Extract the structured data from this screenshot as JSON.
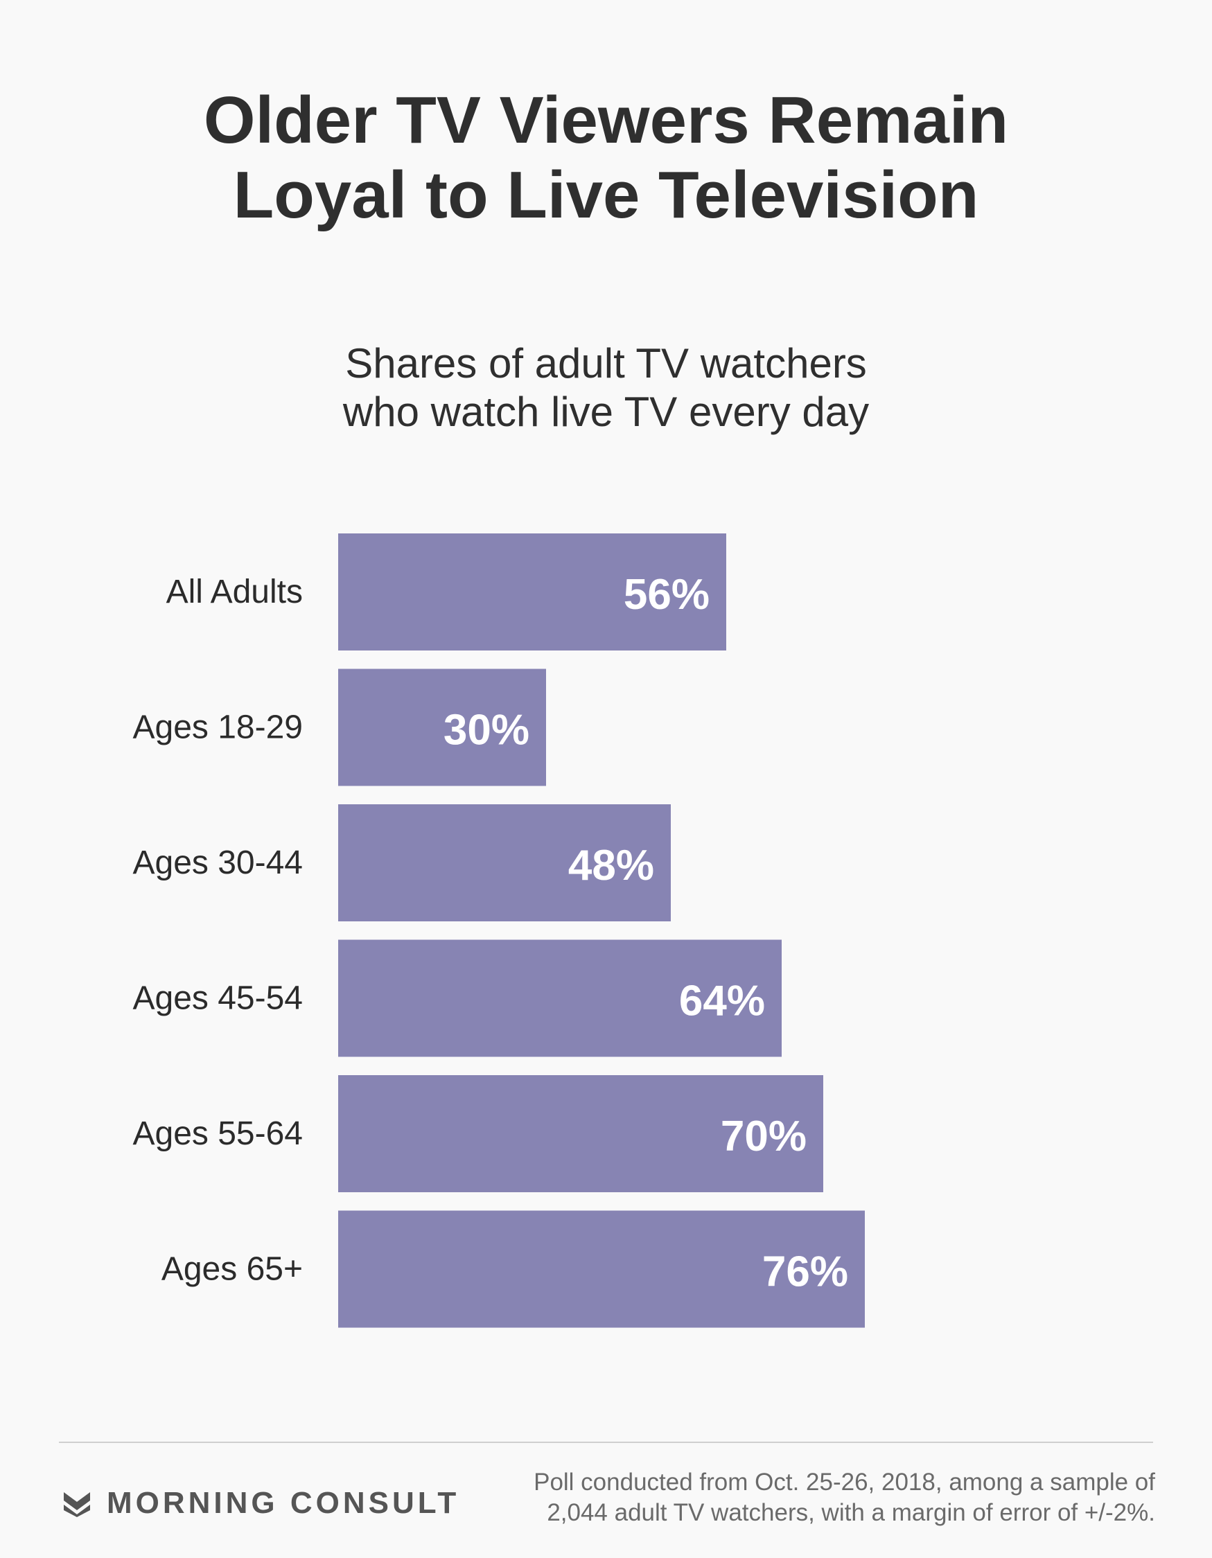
{
  "title": {
    "line1": "Older TV Viewers Remain",
    "line2": "Loyal to Live Television"
  },
  "subtitle": {
    "line1": "Shares of adult TV watchers",
    "line2": "who watch live TV every day"
  },
  "chart_data": {
    "type": "bar",
    "orientation": "horizontal",
    "title": "Shares of adult TV watchers who watch live TV every day",
    "categories": [
      "All Adults",
      "Ages 18-29",
      "Ages 30-44",
      "Ages 45-54",
      "Ages 55-64",
      "Ages 65+"
    ],
    "values": [
      56,
      30,
      48,
      64,
      70,
      76
    ],
    "value_labels": [
      "56%",
      "30%",
      "48%",
      "64%",
      "70%",
      "76%"
    ],
    "unit": "%",
    "xlim": [
      0,
      100
    ],
    "grid": false,
    "bar_color": "#8784b3",
    "label_color": "#ffffff"
  },
  "footer": {
    "brand": "MORNING CONSULT",
    "logo_icon": "morning-consult-chevron-icon",
    "note_line1": "Poll conducted from Oct. 25-26, 2018, among a sample of",
    "note_line2": "2,044 adult TV watchers, with a margin of error of +/-2%."
  },
  "colors": {
    "background": "#f9f9f9",
    "title": "#2f2f2f",
    "brand": "#555555",
    "footnote": "#6a6a6a"
  }
}
